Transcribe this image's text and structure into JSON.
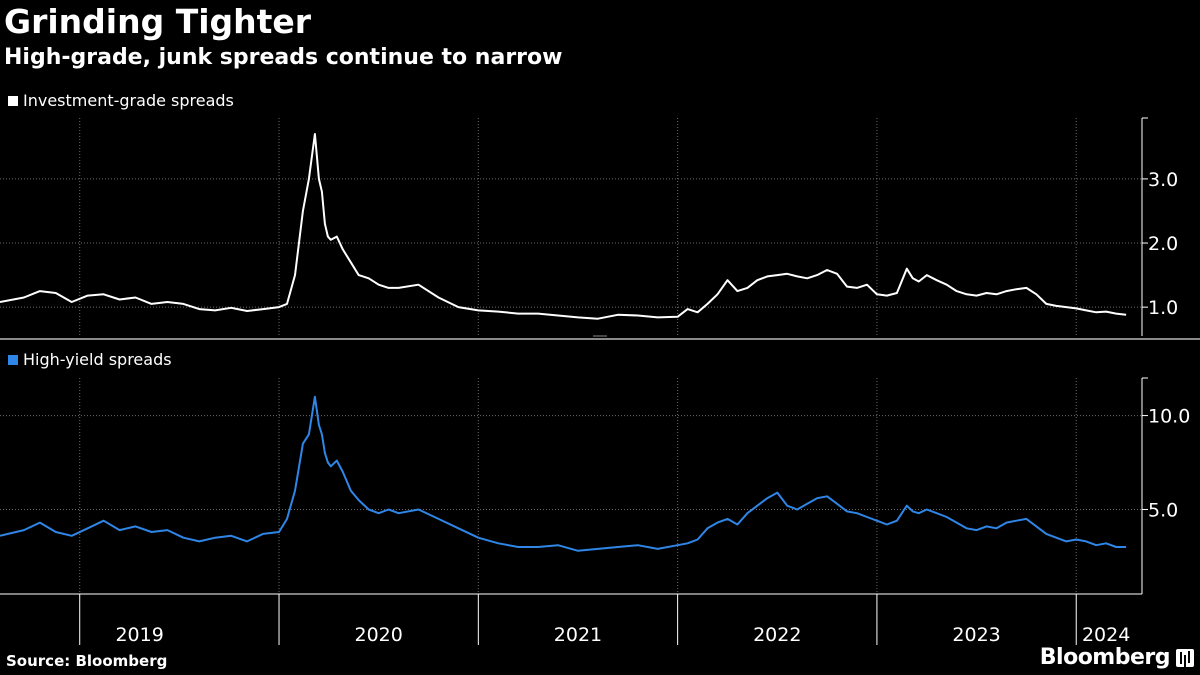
{
  "title": "Grinding Tighter",
  "subtitle": "High-grade, junk spreads continue to narrow",
  "source": "Source: Bloomberg",
  "brand": "Bloomberg",
  "colors": {
    "investment_grade": "#ffffff",
    "high_yield": "#2f86e6",
    "background": "#000000",
    "grid": "#6b6b6b"
  },
  "chart_data": {
    "type": "line",
    "x_labels": [
      "2019",
      "2020",
      "2021",
      "2022",
      "2023",
      "2024"
    ],
    "x_range": [
      2018.6,
      2024.33
    ],
    "panels": [
      {
        "name": "investment-grade",
        "legend": "Investment-grade spreads",
        "ylim": [
          0.55,
          3.95
        ],
        "yticks": [
          1.0,
          2.0,
          3.0
        ],
        "ytick_labels": [
          "1.0",
          "2.0",
          "3.0"
        ],
        "series": {
          "name": "Investment-grade spreads",
          "x": [
            2018.6,
            2018.72,
            2018.8,
            2018.88,
            2018.96,
            2019.04,
            2019.12,
            2019.2,
            2019.28,
            2019.36,
            2019.44,
            2019.52,
            2019.6,
            2019.68,
            2019.76,
            2019.84,
            2019.92,
            2020.0,
            2020.04,
            2020.08,
            2020.12,
            2020.15,
            2020.18,
            2020.2,
            2020.215,
            2020.23,
            2020.245,
            2020.26,
            2020.29,
            2020.32,
            2020.36,
            2020.4,
            2020.45,
            2020.5,
            2020.55,
            2020.6,
            2020.7,
            2020.8,
            2020.9,
            2021.0,
            2021.1,
            2021.2,
            2021.3,
            2021.4,
            2021.5,
            2021.6,
            2021.7,
            2021.8,
            2021.9,
            2022.0,
            2022.05,
            2022.1,
            2022.15,
            2022.2,
            2022.25,
            2022.3,
            2022.35,
            2022.4,
            2022.45,
            2022.5,
            2022.55,
            2022.6,
            2022.65,
            2022.7,
            2022.75,
            2022.8,
            2022.85,
            2022.9,
            2022.95,
            2023.0,
            2023.05,
            2023.1,
            2023.15,
            2023.18,
            2023.21,
            2023.25,
            2023.3,
            2023.35,
            2023.4,
            2023.45,
            2023.5,
            2023.55,
            2023.6,
            2023.65,
            2023.7,
            2023.75,
            2023.8,
            2023.85,
            2023.9,
            2023.95,
            2024.0,
            2024.05,
            2024.1,
            2024.15,
            2024.2,
            2024.25
          ],
          "values": [
            1.08,
            1.15,
            1.25,
            1.22,
            1.08,
            1.18,
            1.2,
            1.12,
            1.15,
            1.05,
            1.08,
            1.05,
            0.97,
            0.95,
            0.99,
            0.94,
            0.97,
            1.0,
            1.05,
            1.5,
            2.5,
            3.0,
            3.7,
            3.0,
            2.8,
            2.3,
            2.1,
            2.05,
            2.1,
            1.9,
            1.7,
            1.5,
            1.45,
            1.35,
            1.3,
            1.3,
            1.35,
            1.15,
            1.0,
            0.95,
            0.93,
            0.9,
            0.9,
            0.87,
            0.84,
            0.82,
            0.88,
            0.87,
            0.84,
            0.85,
            0.97,
            0.92,
            1.05,
            1.2,
            1.42,
            1.25,
            1.3,
            1.42,
            1.48,
            1.5,
            1.52,
            1.48,
            1.45,
            1.5,
            1.58,
            1.52,
            1.32,
            1.3,
            1.35,
            1.2,
            1.18,
            1.22,
            1.6,
            1.45,
            1.4,
            1.5,
            1.42,
            1.35,
            1.25,
            1.2,
            1.18,
            1.22,
            1.2,
            1.25,
            1.28,
            1.3,
            1.2,
            1.05,
            1.02,
            1.0,
            0.98,
            0.95,
            0.92,
            0.93,
            0.9,
            0.88
          ]
        }
      },
      {
        "name": "high-yield",
        "legend": "High-yield spreads",
        "ylim": [
          0.5,
          12.0
        ],
        "yticks": [
          5.0,
          10.0
        ],
        "ytick_labels": [
          "5.0",
          "10.0"
        ],
        "series": {
          "name": "High-yield spreads",
          "x": [
            2018.6,
            2018.72,
            2018.8,
            2018.88,
            2018.96,
            2019.04,
            2019.12,
            2019.2,
            2019.28,
            2019.36,
            2019.44,
            2019.52,
            2019.6,
            2019.68,
            2019.76,
            2019.84,
            2019.92,
            2020.0,
            2020.04,
            2020.08,
            2020.12,
            2020.15,
            2020.18,
            2020.2,
            2020.215,
            2020.23,
            2020.245,
            2020.26,
            2020.29,
            2020.32,
            2020.36,
            2020.4,
            2020.45,
            2020.5,
            2020.55,
            2020.6,
            2020.7,
            2020.8,
            2020.9,
            2021.0,
            2021.1,
            2021.2,
            2021.3,
            2021.4,
            2021.5,
            2021.6,
            2021.7,
            2021.8,
            2021.9,
            2022.0,
            2022.05,
            2022.1,
            2022.15,
            2022.2,
            2022.25,
            2022.3,
            2022.35,
            2022.4,
            2022.45,
            2022.5,
            2022.55,
            2022.6,
            2022.65,
            2022.7,
            2022.75,
            2022.8,
            2022.85,
            2022.9,
            2022.95,
            2023.0,
            2023.05,
            2023.1,
            2023.15,
            2023.18,
            2023.21,
            2023.25,
            2023.3,
            2023.35,
            2023.4,
            2023.45,
            2023.5,
            2023.55,
            2023.6,
            2023.65,
            2023.7,
            2023.75,
            2023.8,
            2023.85,
            2023.9,
            2023.95,
            2024.0,
            2024.05,
            2024.1,
            2024.15,
            2024.2,
            2024.25
          ],
          "values": [
            3.6,
            3.9,
            4.3,
            3.8,
            3.6,
            4.0,
            4.4,
            3.9,
            4.1,
            3.8,
            3.9,
            3.5,
            3.3,
            3.5,
            3.6,
            3.3,
            3.7,
            3.8,
            4.5,
            6.0,
            8.5,
            9.0,
            11.0,
            9.5,
            9.0,
            8.0,
            7.5,
            7.3,
            7.6,
            7.0,
            6.0,
            5.5,
            5.0,
            4.8,
            5.0,
            4.8,
            5.0,
            4.5,
            4.0,
            3.5,
            3.2,
            3.0,
            3.0,
            3.1,
            2.8,
            2.9,
            3.0,
            3.1,
            2.9,
            3.1,
            3.2,
            3.4,
            4.0,
            4.3,
            4.5,
            4.2,
            4.8,
            5.2,
            5.6,
            5.9,
            5.2,
            5.0,
            5.3,
            5.6,
            5.7,
            5.3,
            4.9,
            4.8,
            4.6,
            4.4,
            4.2,
            4.4,
            5.2,
            4.9,
            4.8,
            5.0,
            4.8,
            4.6,
            4.3,
            4.0,
            3.9,
            4.1,
            4.0,
            4.3,
            4.4,
            4.5,
            4.1,
            3.7,
            3.5,
            3.3,
            3.4,
            3.3,
            3.1,
            3.2,
            3.0,
            3.0
          ]
        }
      }
    ]
  }
}
